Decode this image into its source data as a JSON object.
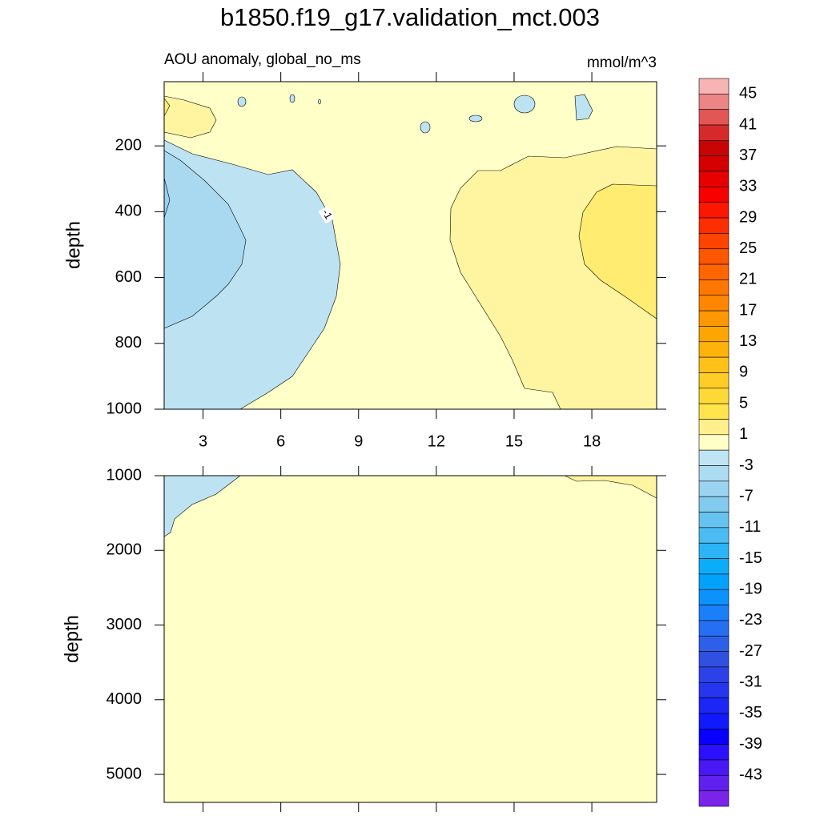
{
  "chart_data": [
    {
      "type": "contour",
      "title": "b1850.f19_g17.validation_mct.003",
      "subtitle": "AOU anomaly, global_no_ms",
      "units": "mmol/m^3",
      "ylabel": "depth",
      "xlim": [
        1.5,
        20.5
      ],
      "xticks": [
        3,
        6,
        9,
        12,
        15,
        18
      ],
      "ylim": [
        5,
        1000
      ],
      "yticks": [
        200,
        400,
        600,
        800,
        1000
      ],
      "y_inverted": true,
      "contour_labels": [
        "-1"
      ],
      "colorbar": {
        "levels": [
          45,
          43,
          41,
          39,
          37,
          35,
          33,
          31,
          29,
          27,
          25,
          23,
          21,
          19,
          17,
          15,
          13,
          11,
          9,
          7,
          5,
          3,
          1,
          -1,
          -3,
          -5,
          -7,
          -9,
          -11,
          -13,
          -15,
          -17,
          -19,
          -21,
          -23,
          -25,
          -27,
          -29,
          -31,
          -33,
          -35,
          -37,
          -39,
          -41,
          -43,
          -45
        ],
        "colors": [
          "#f7b4b4",
          "#ee8585",
          "#e35656",
          "#d62a2a",
          "#c80404",
          "#d40000",
          "#e60000",
          "#f80000",
          "#ff1600",
          "#ff2e00",
          "#ff4400",
          "#ff5600",
          "#ff6600",
          "#ff7600",
          "#ff8600",
          "#ff9700",
          "#ffa500",
          "#ffb30a",
          "#ffc118",
          "#ffcd26",
          "#ffd936",
          "#ffe44c",
          "#fff08c",
          "#ffffc8",
          "#bfe5f5",
          "#acdcf2",
          "#9bd4f0",
          "#82cbef",
          "#66c3f1",
          "#4bbcf3",
          "#2cb5f6",
          "#0aaef8",
          "#00a2fb",
          "#0c92fc",
          "#1a80fa",
          "#266ff3",
          "#2c60ea",
          "#3050e0",
          "#2c42e8",
          "#2535f0",
          "#1c26f6",
          "#101afc",
          "#0800ff",
          "#2a10ff",
          "#4818f6",
          "#6020ee",
          "#7a24ea"
        ]
      }
    },
    {
      "type": "contour",
      "ylabel": "depth",
      "ylim": [
        1000,
        5375
      ],
      "yticks": [
        1000,
        2000,
        3000,
        4000,
        5000
      ],
      "y_inverted": true
    }
  ]
}
